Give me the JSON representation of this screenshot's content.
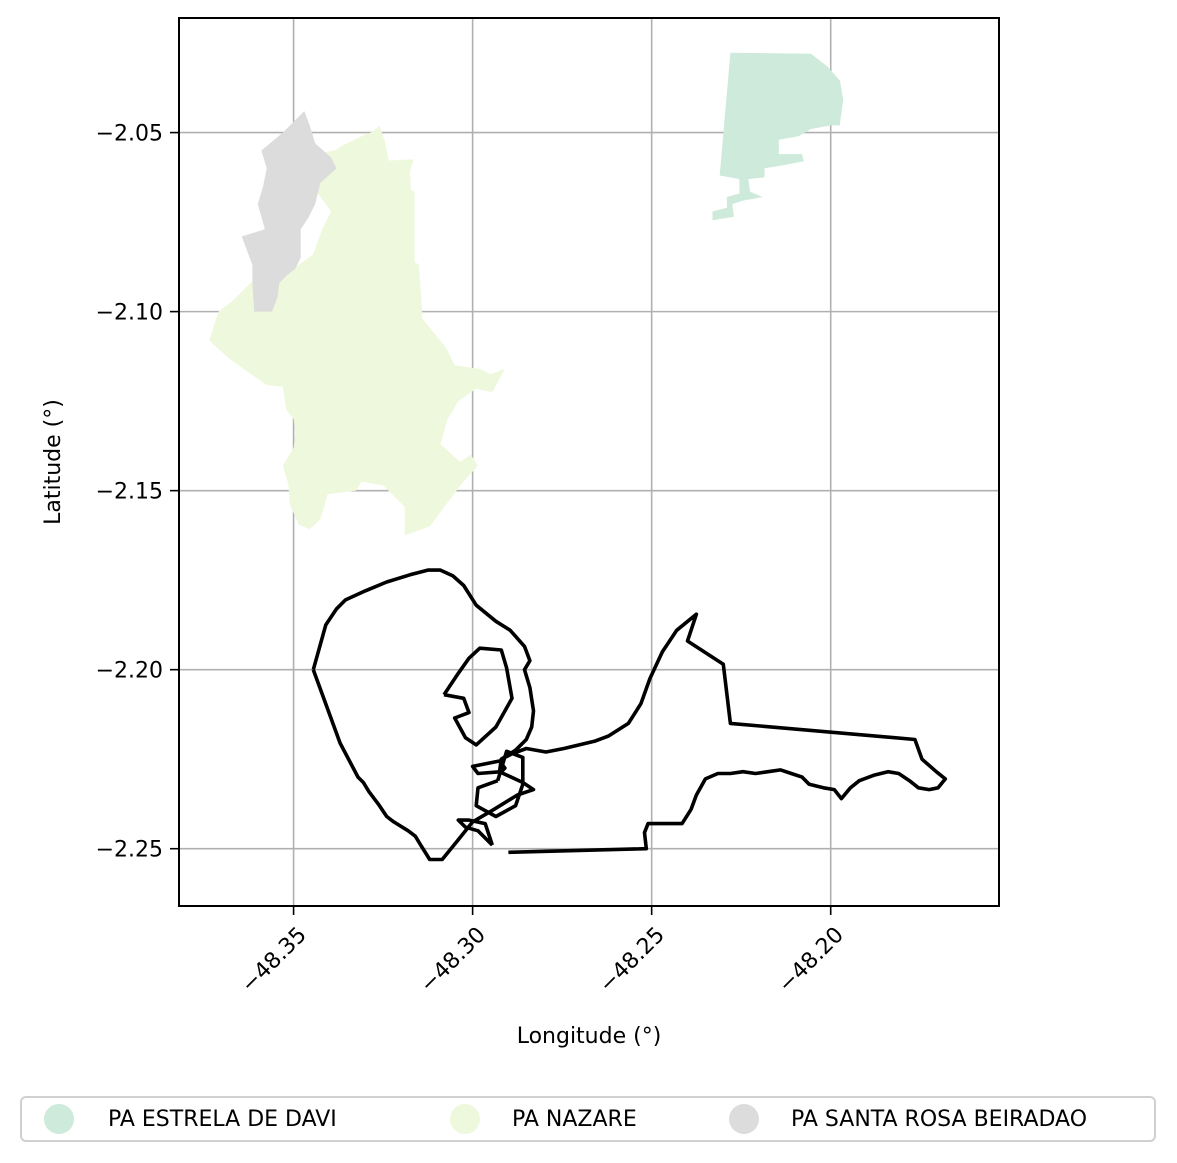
{
  "map": {
    "xlabel": "Longitude (°)",
    "ylabel": "Latitude (°)",
    "xlim": [
      -48.382,
      -48.153
    ],
    "ylim": [
      -2.266,
      -2.018
    ],
    "x_ticks": [
      -48.35,
      -48.3,
      -48.25,
      -48.2
    ],
    "x_tick_labels": [
      "−48.35",
      "−48.30",
      "−48.25",
      "−48.20"
    ],
    "y_ticks": [
      -2.05,
      -2.1,
      -2.15,
      -2.2,
      -2.25
    ],
    "y_tick_labels": [
      "−2.05",
      "−2.10",
      "−2.15",
      "−2.20",
      "−2.25"
    ],
    "grid": true,
    "legend_placement": "bottom-center"
  },
  "legend": [
    {
      "label": "PA ESTRELA DE DAVI",
      "color": "#cdeadb"
    },
    {
      "label": "PA NAZARE",
      "color": "#eef8dc"
    },
    {
      "label": "PA SANTA ROSA BEIRADAO",
      "color": "#dcdcdc"
    }
  ],
  "polygons": [
    {
      "name": "PA ESTRELA DE DAVI",
      "fill": "#cdeadb",
      "coords": [
        [
          -48.228,
          -2.0277
        ],
        [
          -48.2055,
          -2.028
        ],
        [
          -48.201,
          -2.0315
        ],
        [
          -48.1974,
          -2.0355
        ],
        [
          -48.1965,
          -2.041
        ],
        [
          -48.1975,
          -2.048
        ],
        [
          -48.2,
          -2.048
        ],
        [
          -48.2055,
          -2.049
        ],
        [
          -48.209,
          -2.051
        ],
        [
          -48.2145,
          -2.052
        ],
        [
          -48.2145,
          -2.056
        ],
        [
          -48.208,
          -2.056
        ],
        [
          -48.2075,
          -2.058
        ],
        [
          -48.2125,
          -2.059
        ],
        [
          -48.2185,
          -2.06
        ],
        [
          -48.2185,
          -2.0625
        ],
        [
          -48.223,
          -2.063
        ],
        [
          -48.2225,
          -2.0665
        ],
        [
          -48.219,
          -2.068
        ],
        [
          -48.2245,
          -2.069
        ],
        [
          -48.2275,
          -2.07
        ],
        [
          -48.227,
          -2.0735
        ],
        [
          -48.233,
          -2.0745
        ],
        [
          -48.233,
          -2.072
        ],
        [
          -48.229,
          -2.071
        ],
        [
          -48.229,
          -2.068
        ],
        [
          -48.2255,
          -2.067
        ],
        [
          -48.2255,
          -2.063
        ],
        [
          -48.231,
          -2.062
        ]
      ]
    },
    {
      "name": "PA NAZARE",
      "fill": "#eef8dc",
      "coords": [
        [
          -48.3235,
          -2.0578
        ],
        [
          -48.3165,
          -2.0575
        ],
        [
          -48.3175,
          -2.061
        ],
        [
          -48.3172,
          -2.066
        ],
        [
          -48.3162,
          -2.0665
        ],
        [
          -48.3162,
          -2.086
        ],
        [
          -48.315,
          -2.087
        ],
        [
          -48.314,
          -2.102
        ],
        [
          -48.3075,
          -2.11
        ],
        [
          -48.305,
          -2.115
        ],
        [
          -48.298,
          -2.116
        ],
        [
          -48.295,
          -2.1175
        ],
        [
          -48.291,
          -2.116
        ],
        [
          -48.2945,
          -2.1225
        ],
        [
          -48.299,
          -2.1215
        ],
        [
          -48.304,
          -2.125
        ],
        [
          -48.307,
          -2.13
        ],
        [
          -48.309,
          -2.137
        ],
        [
          -48.3035,
          -2.142
        ],
        [
          -48.3005,
          -2.14
        ],
        [
          -48.2985,
          -2.143
        ],
        [
          -48.303,
          -2.148
        ],
        [
          -48.312,
          -2.16
        ],
        [
          -48.319,
          -2.1625
        ],
        [
          -48.319,
          -2.1545
        ],
        [
          -48.325,
          -2.1485
        ],
        [
          -48.331,
          -2.1475
        ],
        [
          -48.3325,
          -2.15
        ],
        [
          -48.3405,
          -2.151
        ],
        [
          -48.3425,
          -2.158
        ],
        [
          -48.3455,
          -2.1608
        ],
        [
          -48.3485,
          -2.1595
        ],
        [
          -48.351,
          -2.154
        ],
        [
          -48.3515,
          -2.148
        ],
        [
          -48.353,
          -2.143
        ],
        [
          -48.35,
          -2.138
        ],
        [
          -48.3495,
          -2.134
        ],
        [
          -48.35,
          -2.13
        ],
        [
          -48.352,
          -2.1275
        ],
        [
          -48.353,
          -2.121
        ],
        [
          -48.3575,
          -2.1205
        ],
        [
          -48.364,
          -2.116
        ],
        [
          -48.368,
          -2.113
        ],
        [
          -48.372,
          -2.1095
        ],
        [
          -48.3735,
          -2.108
        ],
        [
          -48.371,
          -2.1
        ],
        [
          -48.367,
          -2.097
        ],
        [
          -48.362,
          -2.092
        ],
        [
          -48.355,
          -2.088
        ],
        [
          -48.35,
          -2.088
        ],
        [
          -48.3445,
          -2.084
        ],
        [
          -48.342,
          -2.077
        ],
        [
          -48.34,
          -2.073
        ],
        [
          -48.3395,
          -2.072
        ],
        [
          -48.3455,
          -2.064
        ],
        [
          -48.349,
          -2.063
        ],
        [
          -48.35,
          -2.062
        ],
        [
          -48.3505,
          -2.06
        ],
        [
          -48.347,
          -2.058
        ],
        [
          -48.344,
          -2.057
        ],
        [
          -48.344,
          -2.056
        ],
        [
          -48.3385,
          -2.055
        ],
        [
          -48.337,
          -2.054
        ],
        [
          -48.335,
          -2.053
        ],
        [
          -48.331,
          -2.051
        ],
        [
          -48.3285,
          -2.05
        ],
        [
          -48.327,
          -2.049
        ],
        [
          -48.326,
          -2.048
        ],
        [
          -48.3245,
          -2.0525
        ]
      ]
    },
    {
      "name": "PA SANTA ROSA BEIRADAO",
      "fill": "#dcdcdc",
      "coords": [
        [
          -48.347,
          -2.044
        ],
        [
          -48.3455,
          -2.048
        ],
        [
          -48.344,
          -2.053
        ],
        [
          -48.3395,
          -2.057
        ],
        [
          -48.338,
          -2.06
        ],
        [
          -48.3425,
          -2.064
        ],
        [
          -48.344,
          -2.07
        ],
        [
          -48.346,
          -2.074
        ],
        [
          -48.348,
          -2.077
        ],
        [
          -48.348,
          -2.085
        ],
        [
          -48.3495,
          -2.088
        ],
        [
          -48.352,
          -2.09
        ],
        [
          -48.354,
          -2.092
        ],
        [
          -48.3545,
          -2.096
        ],
        [
          -48.356,
          -2.1
        ],
        [
          -48.361,
          -2.1
        ],
        [
          -48.3615,
          -2.092
        ],
        [
          -48.3615,
          -2.087
        ],
        [
          -48.3645,
          -2.079
        ],
        [
          -48.358,
          -2.077
        ],
        [
          -48.36,
          -2.07
        ],
        [
          -48.3585,
          -2.065
        ],
        [
          -48.3575,
          -2.06
        ],
        [
          -48.359,
          -2.055
        ],
        [
          -48.353,
          -2.05
        ]
      ]
    }
  ],
  "outline_paths": [
    [
      [
        -48.3445,
        -2.2
      ],
      [
        -48.341,
        -2.1875
      ],
      [
        -48.338,
        -2.183
      ],
      [
        -48.3355,
        -2.1805
      ],
      [
        -48.33,
        -2.178
      ],
      [
        -48.324,
        -2.1755
      ],
      [
        -48.3175,
        -2.1735
      ],
      [
        -48.3125,
        -2.1722
      ],
      [
        -48.309,
        -2.1722
      ],
      [
        -48.3055,
        -2.1738
      ],
      [
        -48.3025,
        -2.1765
      ],
      [
        -48.299,
        -2.182
      ],
      [
        -48.2935,
        -2.1865
      ],
      [
        -48.2895,
        -2.189
      ],
      [
        -48.2855,
        -2.1935
      ],
      [
        -48.284,
        -2.1975
      ],
      [
        -48.2855,
        -2.2
      ],
      [
        -48.284,
        -2.205
      ],
      [
        -48.283,
        -2.2115
      ],
      [
        -48.2835,
        -2.216
      ],
      [
        -48.285,
        -2.2195
      ],
      [
        -48.288,
        -2.2225
      ],
      [
        -48.292,
        -2.225
      ],
      [
        -48.2925,
        -2.2285
      ],
      [
        -48.286,
        -2.2315
      ],
      [
        -48.283,
        -2.2335
      ],
      [
        -48.2875,
        -2.235
      ],
      [
        -48.294,
        -2.239
      ],
      [
        -48.3,
        -2.2425
      ],
      [
        -48.304,
        -2.2475
      ],
      [
        -48.3085,
        -2.253
      ],
      [
        -48.312,
        -2.253
      ],
      [
        -48.3145,
        -2.249
      ],
      [
        -48.316,
        -2.2465
      ],
      [
        -48.318,
        -2.245
      ],
      [
        -48.322,
        -2.2425
      ],
      [
        -48.324,
        -2.241
      ],
      [
        -48.326,
        -2.238
      ],
      [
        -48.329,
        -2.234
      ],
      [
        -48.3305,
        -2.2315
      ],
      [
        -48.332,
        -2.23
      ],
      [
        -48.337,
        -2.2205
      ],
      [
        -48.3445,
        -2.2
      ]
    ],
    [
      [
        -48.308,
        -2.207
      ],
      [
        -48.304,
        -2.201
      ],
      [
        -48.301,
        -2.1968
      ],
      [
        -48.298,
        -2.194
      ],
      [
        -48.292,
        -2.1945
      ],
      [
        -48.2905,
        -2.1995
      ],
      [
        -48.289,
        -2.208
      ],
      [
        -48.2935,
        -2.216
      ],
      [
        -48.299,
        -2.221
      ],
      [
        -48.302,
        -2.219
      ],
      [
        -48.305,
        -2.2135
      ],
      [
        -48.301,
        -2.212
      ],
      [
        -48.3025,
        -2.208
      ],
      [
        -48.308,
        -2.207
      ]
    ],
    [
      [
        -48.292,
        -2.2285
      ],
      [
        -48.2985,
        -2.229
      ],
      [
        -48.3,
        -2.227
      ],
      [
        -48.2925,
        -2.2255
      ],
      [
        -48.291,
        -2.2275
      ],
      [
        -48.292,
        -2.2285
      ]
    ],
    [
      [
        -48.293,
        -2.231
      ],
      [
        -48.2985,
        -2.233
      ],
      [
        -48.299,
        -2.238
      ],
      [
        -48.2935,
        -2.241
      ],
      [
        -48.288,
        -2.238
      ],
      [
        -48.286,
        -2.232
      ],
      [
        -48.286,
        -2.2245
      ],
      [
        -48.2905,
        -2.2228
      ],
      [
        -48.293,
        -2.231
      ]
    ],
    [
      [
        -48.2945,
        -2.249
      ],
      [
        -48.2985,
        -2.245
      ],
      [
        -48.302,
        -2.244
      ],
      [
        -48.304,
        -2.242
      ],
      [
        -48.301,
        -2.242
      ],
      [
        -48.2965,
        -2.243
      ],
      [
        -48.2945,
        -2.249
      ]
    ],
    [
      [
        -48.29,
        -2.251
      ],
      [
        -48.2515,
        -2.25
      ],
      [
        -48.252,
        -2.2455
      ],
      [
        -48.251,
        -2.243
      ],
      [
        -48.2415,
        -2.243
      ],
      [
        -48.239,
        -2.239
      ],
      [
        -48.2375,
        -2.235
      ],
      [
        -48.235,
        -2.2305
      ],
      [
        -48.2315,
        -2.229
      ],
      [
        -48.228,
        -2.229
      ],
      [
        -48.2245,
        -2.2285
      ],
      [
        -48.221,
        -2.229
      ],
      [
        -48.2175,
        -2.2285
      ],
      [
        -48.214,
        -2.228
      ],
      [
        -48.211,
        -2.229
      ],
      [
        -48.208,
        -2.23
      ],
      [
        -48.206,
        -2.232
      ],
      [
        -48.202,
        -2.233
      ],
      [
        -48.199,
        -2.2335
      ],
      [
        -48.197,
        -2.236
      ],
      [
        -48.1945,
        -2.233
      ],
      [
        -48.192,
        -2.231
      ],
      [
        -48.188,
        -2.2295
      ],
      [
        -48.184,
        -2.2285
      ],
      [
        -48.181,
        -2.229
      ],
      [
        -48.178,
        -2.231
      ],
      [
        -48.1755,
        -2.233
      ],
      [
        -48.1725,
        -2.2335
      ],
      [
        -48.17,
        -2.233
      ],
      [
        -48.168,
        -2.2305
      ],
      [
        -48.1705,
        -2.2285
      ],
      [
        -48.1745,
        -2.225
      ],
      [
        -48.1765,
        -2.2195
      ],
      [
        -48.228,
        -2.215
      ],
      [
        -48.23,
        -2.1985
      ],
      [
        -48.24,
        -2.192
      ],
      [
        -48.2375,
        -2.1845
      ],
      [
        -48.243,
        -2.189
      ],
      [
        -48.247,
        -2.195
      ],
      [
        -48.2505,
        -2.2025
      ],
      [
        -48.253,
        -2.2095
      ],
      [
        -48.2565,
        -2.215
      ],
      [
        -48.262,
        -2.2185
      ],
      [
        -48.266,
        -2.22
      ],
      [
        -48.2745,
        -2.222
      ],
      [
        -48.2795,
        -2.223
      ],
      [
        -48.285,
        -2.222
      ],
      [
        -48.289,
        -2.2235
      ],
      [
        -48.292,
        -2.225
      ]
    ]
  ]
}
